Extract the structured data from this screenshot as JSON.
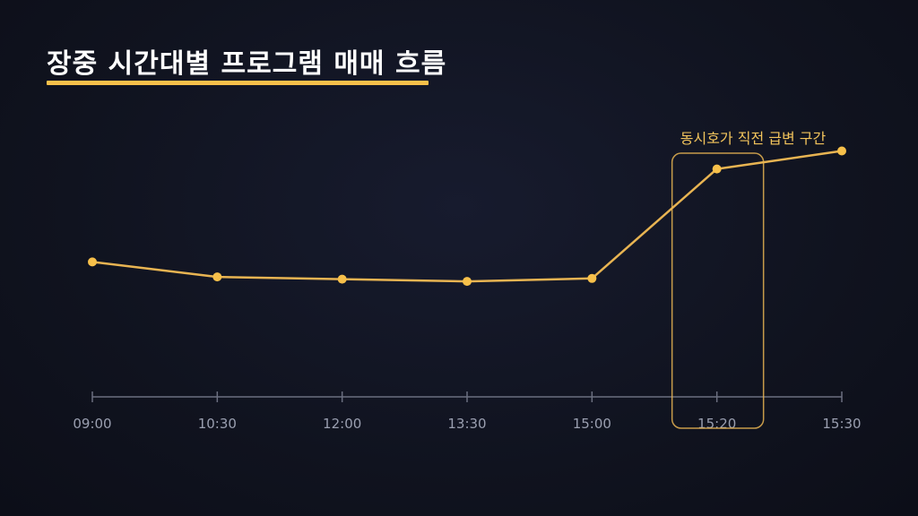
{
  "title": "장중 시간대별 프로그램 매매 흐름",
  "colors": {
    "background": "#10131f",
    "accent": "#f7c04a",
    "line": "#e8b452",
    "axis": "#6b6f80",
    "tick_text": "#9a9fb0"
  },
  "chart_data": {
    "type": "line",
    "title": "장중 시간대별 프로그램 매매 흐름",
    "xlabel": "",
    "ylabel": "",
    "categories": [
      "09:00",
      "10:30",
      "12:00",
      "13:30",
      "15:00",
      "15:20",
      "15:30"
    ],
    "series": [
      {
        "values": [
          38,
          28,
          26.5,
          25,
          27,
          100,
          112
        ]
      }
    ],
    "ylim": [
      -52,
      138
    ],
    "grid": false,
    "legend": "none",
    "annotation": {
      "label": "동시호가 직전 급변 구간",
      "highlight_category": "15:20"
    }
  }
}
